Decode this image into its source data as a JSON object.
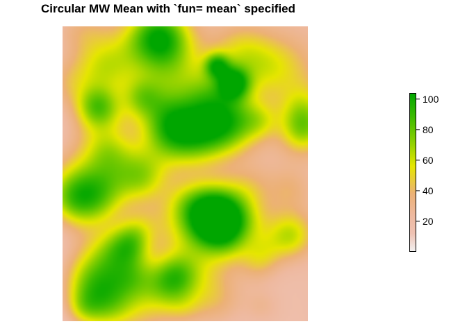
{
  "chart_data": {
    "type": "heatmap",
    "title": "Circular MW Mean with `fun= mean` specified",
    "xlabel": "",
    "ylabel": "",
    "grid": false,
    "legend": {
      "type": "colorbar",
      "placement": "right",
      "range": [
        0,
        104
      ],
      "ticks": [
        20,
        40,
        60,
        80,
        100
      ],
      "colors": [
        "#F2F2F2",
        "#EFC2B3",
        "#EEB99F",
        "#ECB176",
        "#E6E600",
        "#8BD000",
        "#3EBB00",
        "#00A600"
      ],
      "stops": [
        0,
        12,
        24,
        38,
        56,
        72,
        88,
        104
      ]
    },
    "notable_features": [
      {
        "description": "high-value cluster (green core)",
        "peak": 104,
        "nx": 0.64,
        "ny": 0.66
      },
      {
        "description": "secondary hotspot (yellow-green)",
        "peak": 70,
        "nx": 0.7,
        "ny": 0.19
      }
    ]
  }
}
